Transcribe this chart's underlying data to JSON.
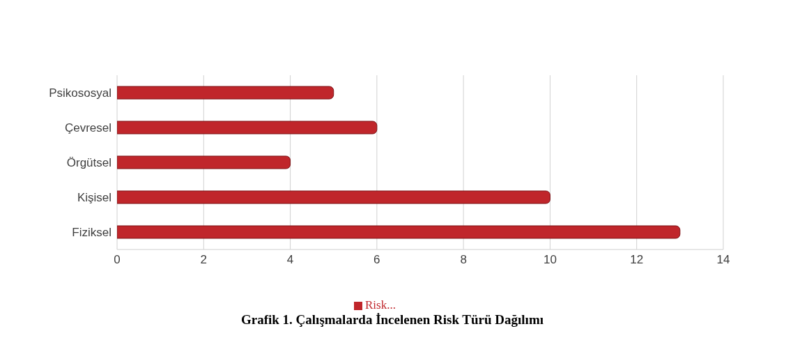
{
  "chart_data": {
    "type": "bar",
    "orientation": "horizontal",
    "title": "Grafik 1. Çalışmalarda İncelenen Risk Türü Dağılımı",
    "categories": [
      "Psikososyal",
      "Çevresel",
      "Örgütsel",
      "Kişisel",
      "Fiziksel"
    ],
    "series": [
      {
        "name": "Risk...",
        "color": "#c0262b",
        "values": [
          5,
          6,
          4,
          10,
          13
        ]
      }
    ],
    "xlim": [
      0,
      14
    ],
    "xticks": [
      0,
      2,
      4,
      6,
      8,
      10,
      12,
      14
    ],
    "grid": "x",
    "legend": "bottom"
  }
}
